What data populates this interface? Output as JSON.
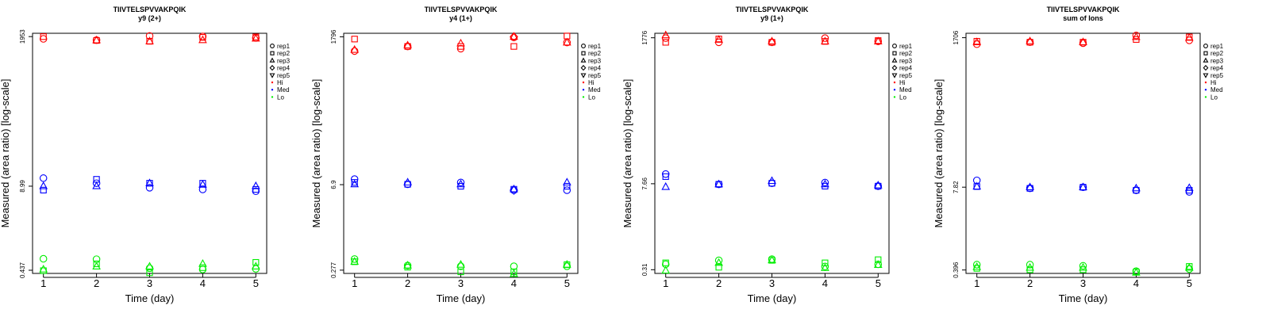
{
  "colors": {
    "Hi": "#ff0000",
    "Med": "#0000ff",
    "Lo": "#00ee00",
    "axis": "#000000"
  },
  "legend": {
    "reps": [
      {
        "label": "rep1",
        "symbol": "circle"
      },
      {
        "label": "rep2",
        "symbol": "square"
      },
      {
        "label": "rep3",
        "symbol": "triangle-up"
      },
      {
        "label": "rep4",
        "symbol": "diamond"
      },
      {
        "label": "rep5",
        "symbol": "triangle-down"
      }
    ],
    "levels": [
      {
        "label": "Hi",
        "color_key": "Hi"
      },
      {
        "label": "Med",
        "color_key": "Med"
      },
      {
        "label": "Lo",
        "color_key": "Lo"
      }
    ]
  },
  "chart_data": [
    {
      "type": "scatter",
      "title": "TIIVTELSPVVAKPQIK",
      "subtitle": "y9 (2+)",
      "xlabel": "Time (day)",
      "ylabel": "Measured (area ratio) [log-scale]",
      "x_ticks": [
        1,
        2,
        3,
        4,
        5
      ],
      "y_ticks": [
        "0.437",
        "8.99",
        "1953"
      ],
      "ylim_log": [
        0.39,
        2200
      ],
      "legend_position": "right",
      "series": {
        "Hi": [
          [
            1800,
            1950,
            null,
            null,
            null
          ],
          [
            1720,
            1700,
            1710,
            null,
            null
          ],
          [
            2000,
            1650,
            1650,
            null,
            null
          ],
          [
            1960,
            1900,
            1720,
            null,
            null
          ],
          [
            1860,
            1930,
            1820,
            null,
            null
          ]
        ],
        "Med": [
          [
            12.0,
            7.8,
            9.0,
            null,
            null
          ],
          [
            10.0,
            11.5,
            9.0,
            null,
            null
          ],
          [
            8.5,
            10.0,
            10.0,
            null,
            null
          ],
          [
            8.0,
            10.0,
            9.5,
            null,
            null
          ],
          [
            7.5,
            8.0,
            9.0,
            null,
            null
          ]
        ],
        "Lo": [
          [
            0.66,
            0.43,
            0.45,
            null,
            null
          ],
          [
            0.65,
            0.55,
            0.5,
            null,
            null
          ],
          [
            0.47,
            0.4,
            0.5,
            null,
            null
          ],
          [
            0.45,
            0.48,
            0.55,
            null,
            null
          ],
          [
            0.46,
            0.58,
            0.5,
            null,
            null
          ]
        ]
      }
    },
    {
      "type": "scatter",
      "title": "TIIVTELSPVVAKPQIK",
      "subtitle": "y4 (1+)",
      "xlabel": "Time (day)",
      "ylabel": "Measured (area ratio) [log-scale]",
      "x_ticks": [
        1,
        2,
        3,
        4,
        5
      ],
      "y_ticks": [
        "0.277",
        "6.9",
        "1796"
      ],
      "ylim_log": [
        0.245,
        2050
      ],
      "legend_position": "right",
      "series": {
        "Hi": [
          [
            1050,
            1650,
            1100,
            null,
            null
          ],
          [
            1250,
            1250,
            1300,
            null,
            null
          ],
          [
            1150,
            1250,
            1400,
            null,
            null
          ],
          [
            1750,
            1250,
            1800,
            1800,
            null
          ],
          [
            1450,
            1850,
            1450,
            null,
            null
          ]
        ],
        "Med": [
          [
            8.5,
            7.5,
            7.0,
            null,
            null
          ],
          [
            7.0,
            7.0,
            7.5,
            null,
            null
          ],
          [
            7.5,
            6.5,
            7.0,
            null,
            null
          ],
          [
            5.6,
            5.8,
            5.8,
            5.6,
            null
          ],
          [
            5.6,
            6.5,
            7.5,
            null,
            null
          ]
        ],
        "Lo": [
          [
            0.42,
            0.38,
            0.38,
            null,
            null
          ],
          [
            0.33,
            0.31,
            0.33,
            null,
            null
          ],
          [
            0.32,
            0.26,
            0.34,
            null,
            null
          ],
          [
            0.32,
            0.26,
            0.24,
            null,
            null
          ],
          [
            0.32,
            0.34,
            0.34,
            null,
            null
          ]
        ]
      }
    },
    {
      "type": "scatter",
      "title": "TIIVTELSPVVAKPQIK",
      "subtitle": "y9 (1+)",
      "xlabel": "Time (day)",
      "ylabel": "Measured (area ratio) [log-scale]",
      "x_ticks": [
        1,
        2,
        3,
        4,
        5
      ],
      "y_ticks": [
        "0.31",
        "7.66",
        "1776"
      ],
      "ylim_log": [
        0.27,
        2100
      ],
      "legend_position": "right",
      "series": {
        "Hi": [
          [
            1750,
            1500,
            1950,
            null,
            null
          ],
          [
            1500,
            1700,
            1650,
            null,
            null
          ],
          [
            1500,
            1500,
            1550,
            null,
            null
          ],
          [
            1750,
            1550,
            1550,
            null,
            null
          ],
          [
            1550,
            1600,
            1550,
            null,
            null
          ]
        ],
        "Med": [
          [
            11.0,
            10.0,
            6.8,
            null,
            null
          ],
          [
            7.5,
            7.5,
            7.5,
            null,
            null
          ],
          [
            7.8,
            7.8,
            8.5,
            null,
            null
          ],
          [
            8.0,
            7.0,
            7.5,
            null,
            null
          ],
          [
            7.0,
            7.0,
            7.2,
            null,
            null
          ]
        ],
        "Lo": [
          [
            0.38,
            0.4,
            0.3,
            null,
            null
          ],
          [
            0.44,
            0.34,
            0.4,
            null,
            null
          ],
          [
            0.46,
            0.44,
            0.44,
            null,
            null
          ],
          [
            0.35,
            0.4,
            0.33,
            null,
            null
          ],
          [
            0.38,
            0.45,
            0.37,
            null,
            null
          ]
        ]
      }
    },
    {
      "type": "scatter",
      "title": "TIIVTELSPVVAKPQIK",
      "subtitle": "sum of Ions",
      "xlabel": "Time (day)",
      "ylabel": "Measured (area ratio) [log-scale]",
      "x_ticks": [
        1,
        2,
        3,
        4,
        5
      ],
      "y_ticks": [
        "0.396",
        "7.82",
        "1706"
      ],
      "ylim_log": [
        0.35,
        2000
      ],
      "legend_position": "right",
      "series": {
        "Hi": [
          [
            1350,
            1500,
            1450,
            null,
            null
          ],
          [
            1450,
            1450,
            1500,
            null,
            null
          ],
          [
            1400,
            1450,
            1450,
            null,
            null
          ],
          [
            1850,
            1600,
            1750,
            null,
            null
          ],
          [
            1550,
            1750,
            1700,
            null,
            null
          ]
        ],
        "Med": [
          [
            10.0,
            8.0,
            8.0,
            null,
            null
          ],
          [
            7.5,
            7.5,
            7.8,
            null,
            null
          ],
          [
            7.8,
            7.8,
            7.8,
            null,
            null
          ],
          [
            7.0,
            7.0,
            7.5,
            null,
            null
          ],
          [
            6.6,
            7.0,
            7.6,
            null,
            null
          ]
        ],
        "Lo": [
          [
            0.48,
            0.42,
            0.44,
            null,
            null
          ],
          [
            0.48,
            0.4,
            0.43,
            null,
            null
          ],
          [
            0.46,
            0.4,
            0.43,
            null,
            null
          ],
          [
            0.38,
            0.37,
            0.36,
            null,
            null
          ],
          [
            0.41,
            0.45,
            0.43,
            null,
            null
          ]
        ]
      }
    }
  ]
}
